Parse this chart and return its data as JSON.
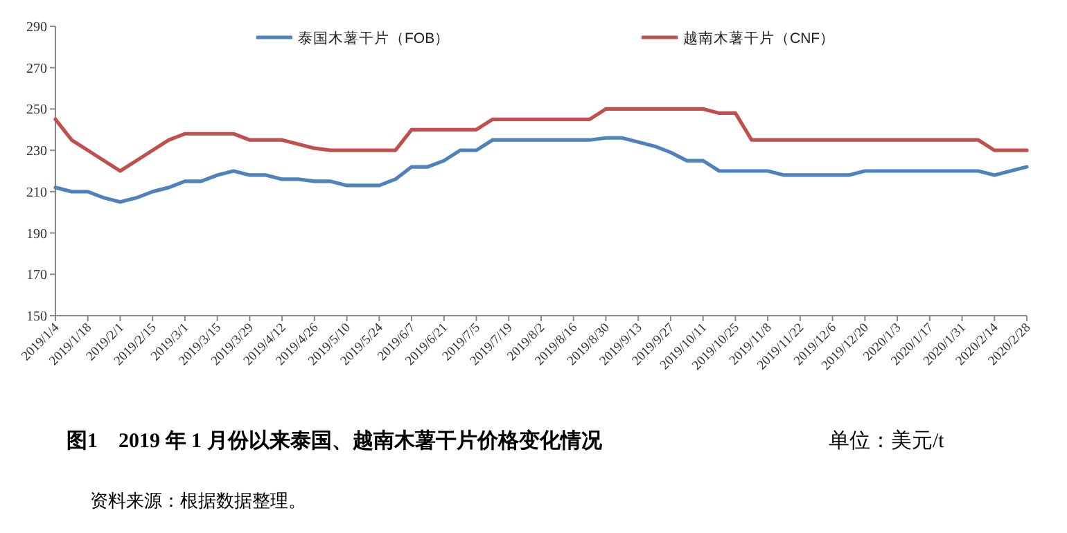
{
  "chart_data": {
    "type": "line",
    "title": "图1　2019 年 1 月份以来泰国、越南木薯干片价格变化情况",
    "annotations": [
      "单位：美元/t",
      "资料来源：根据数据整理。"
    ],
    "categories": [
      "2019/1/4",
      null,
      "2019/1/18",
      null,
      "2019/2/1",
      null,
      "2019/2/15",
      null,
      "2019/3/1",
      null,
      "2019/3/15",
      null,
      "2019/3/29",
      null,
      "2019/4/12",
      null,
      "2019/4/26",
      null,
      "2019/5/10",
      null,
      "2019/5/24",
      null,
      "2019/6/7",
      null,
      "2019/6/21",
      null,
      "2019/7/5",
      null,
      "2019/7/19",
      null,
      "2019/8/2",
      null,
      "2019/8/16",
      null,
      "2019/8/30",
      null,
      "2019/9/13",
      null,
      "2019/9/27",
      null,
      "2019/10/11",
      null,
      "2019/10/25",
      null,
      "2019/11/8",
      null,
      "2019/11/22",
      null,
      "2019/12/6",
      null,
      "2019/12/20",
      null,
      "2020/1/3",
      null,
      "2020/1/17",
      null,
      "2020/1/31",
      null,
      "2020/2/14",
      null,
      "2020/2/28"
    ],
    "series": [
      {
        "name": "泰国木薯干片（FOB）",
        "color": "#4f81bd",
        "values": [
          212,
          210,
          210,
          207,
          205,
          207,
          210,
          212,
          215,
          215,
          218,
          220,
          218,
          218,
          216,
          216,
          215,
          215,
          213,
          213,
          213,
          216,
          222,
          222,
          225,
          230,
          230,
          235,
          235,
          235,
          235,
          235,
          235,
          235,
          236,
          236,
          234,
          232,
          229,
          225,
          225,
          220,
          220,
          220,
          220,
          218,
          218,
          218,
          218,
          218,
          220,
          220,
          220,
          220,
          220,
          220,
          220,
          220,
          218,
          220,
          222
        ]
      },
      {
        "name": "越南木薯干片（CNF）",
        "color": "#c0504d",
        "values": [
          245,
          235,
          230,
          225,
          220,
          225,
          230,
          235,
          238,
          238,
          238,
          238,
          235,
          235,
          235,
          233,
          231,
          230,
          230,
          230,
          230,
          230,
          240,
          240,
          240,
          240,
          240,
          245,
          245,
          245,
          245,
          245,
          245,
          245,
          250,
          250,
          250,
          250,
          250,
          250,
          250,
          248,
          248,
          235,
          235,
          235,
          235,
          235,
          235,
          235,
          235,
          235,
          235,
          235,
          235,
          235,
          235,
          235,
          230,
          230,
          230
        ]
      }
    ],
    "ylim": [
      150,
      290
    ],
    "yticks": [
      150,
      170,
      190,
      210,
      230,
      250,
      270,
      290
    ],
    "grid": false,
    "legend": "top",
    "marker": "none",
    "line_style": "solid"
  }
}
